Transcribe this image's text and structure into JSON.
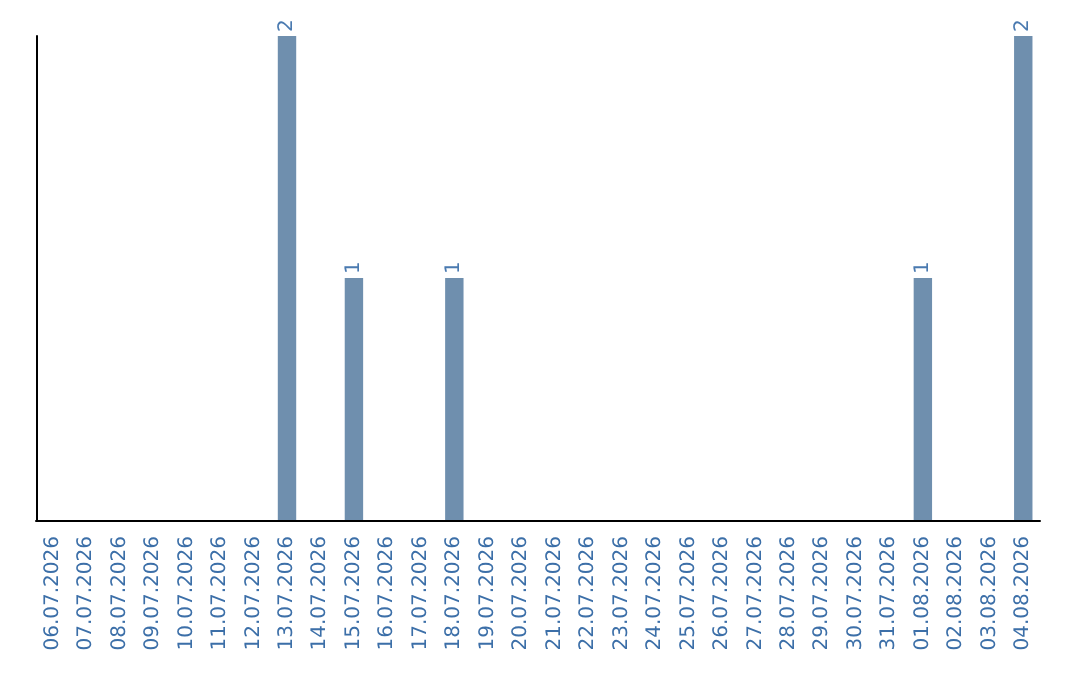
{
  "chart_data": {
    "type": "bar",
    "categories": [
      "06.07.2026",
      "07.07.2026",
      "08.07.2026",
      "09.07.2026",
      "10.07.2026",
      "11.07.2026",
      "12.07.2026",
      "13.07.2026",
      "14.07.2026",
      "15.07.2026",
      "16.07.2026",
      "17.07.2026",
      "18.07.2026",
      "19.07.2026",
      "20.07.2026",
      "21.07.2026",
      "22.07.2026",
      "23.07.2026",
      "24.07.2026",
      "25.07.2026",
      "26.07.2026",
      "27.07.2026",
      "28.07.2026",
      "29.07.2026",
      "30.07.2026",
      "31.07.2026",
      "01.08.2026",
      "02.08.2026",
      "03.08.2026",
      "04.08.2026"
    ],
    "values": [
      0,
      0,
      0,
      0,
      0,
      0,
      0,
      2,
      0,
      1,
      0,
      0,
      1,
      0,
      0,
      0,
      0,
      0,
      0,
      0,
      0,
      0,
      0,
      0,
      0,
      0,
      1,
      0,
      0,
      2
    ],
    "value_labels": [
      null,
      null,
      null,
      null,
      null,
      null,
      null,
      "2",
      null,
      "1",
      null,
      null,
      "1",
      null,
      null,
      null,
      null,
      null,
      null,
      null,
      null,
      null,
      null,
      null,
      null,
      null,
      "1",
      null,
      null,
      "2"
    ],
    "color": "#6f8fae",
    "tick_labels": "x"
  }
}
